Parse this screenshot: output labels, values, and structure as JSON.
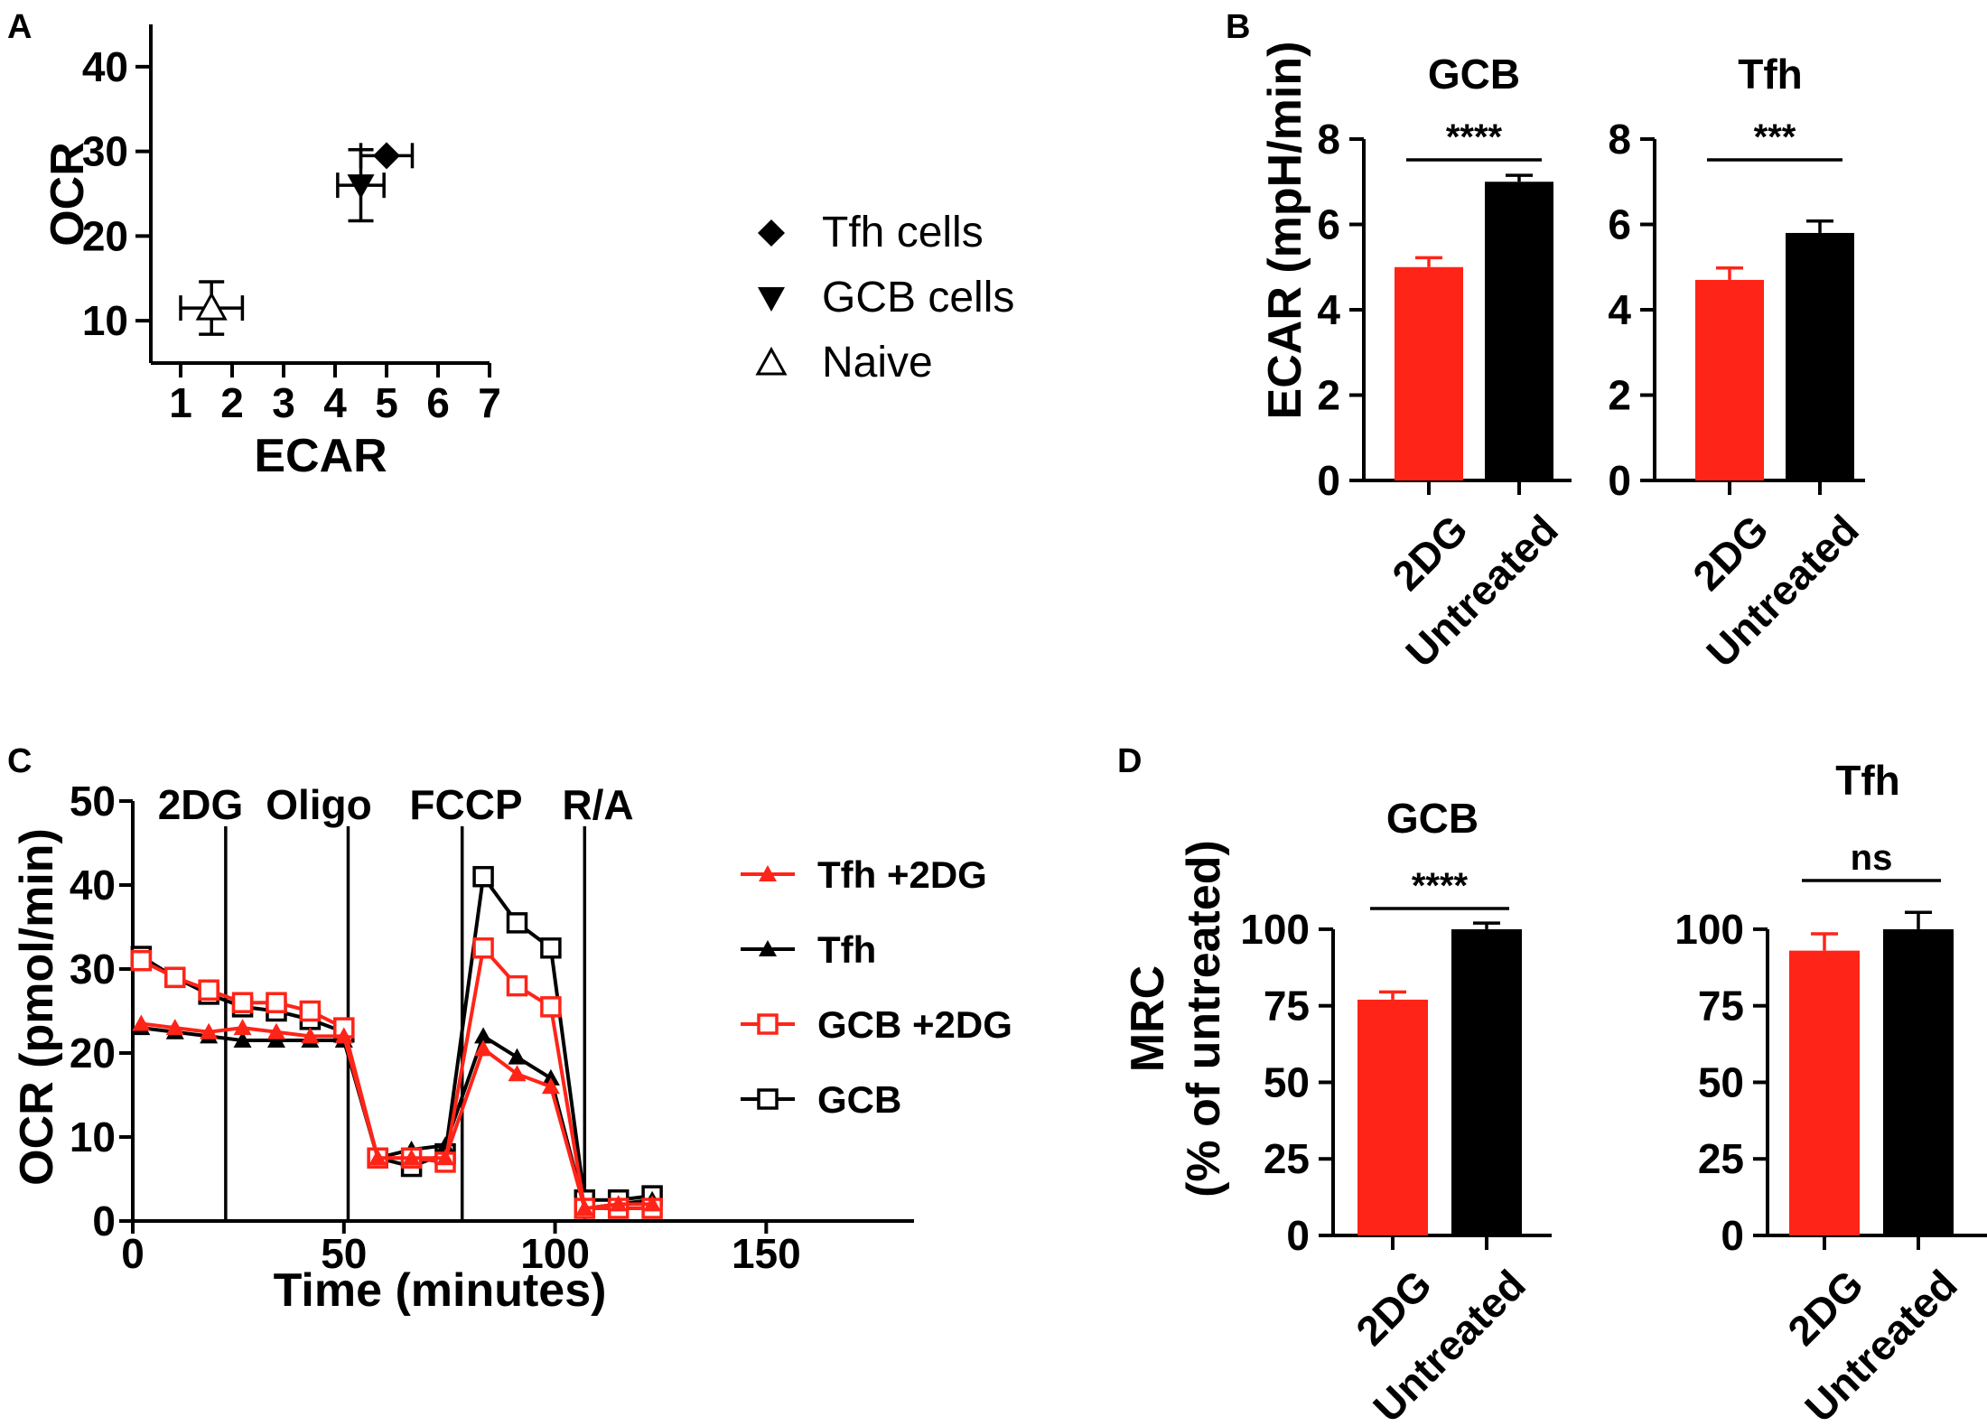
{
  "colors": {
    "red": "#ff2418",
    "black": "#000000"
  },
  "chart_data": [
    {
      "panel": "A",
      "type": "scatter",
      "xlabel": "ECAR",
      "ylabel": "OCR",
      "xlim": [
        1,
        7
      ],
      "ylim": [
        5,
        45
      ],
      "xticks": [
        1,
        2,
        3,
        4,
        5,
        6,
        7
      ],
      "yticks": [
        10,
        20,
        30,
        40
      ],
      "legend_position": "right",
      "series": [
        {
          "name": "Tfh cells",
          "marker": "diamond",
          "x": 5.0,
          "y": 29.5,
          "xerr": 0.5,
          "yerr": 0
        },
        {
          "name": "GCB cells",
          "marker": "triangle-down",
          "x": 4.5,
          "y": 26.0,
          "xerr": 0.45,
          "yerr": 4.2
        },
        {
          "name": "Naive",
          "marker": "triangle-up-open",
          "x": 1.6,
          "y": 11.5,
          "xerr": 0.6,
          "yerr": 3.1
        }
      ]
    },
    {
      "panel": "B",
      "type": "bar",
      "ylabel": "ECAR (mpH/min)",
      "ylim": [
        0,
        8
      ],
      "yticks": [
        0,
        2,
        4,
        6,
        8
      ],
      "subplots": [
        {
          "title": "GCB",
          "categories": [
            "2DG",
            "Untreated"
          ],
          "values": [
            5.0,
            7.0
          ],
          "errors": [
            0.22,
            0.15
          ],
          "significance": "****"
        },
        {
          "title": "Tfh",
          "categories": [
            "2DG",
            "Untreated"
          ],
          "values": [
            4.7,
            5.8
          ],
          "errors": [
            0.28,
            0.28
          ],
          "significance": "***"
        }
      ]
    },
    {
      "panel": "C",
      "type": "line",
      "xlabel": "Time (minutes)",
      "ylabel": "OCR (pmol/min)",
      "xlim": [
        0,
        185
      ],
      "ylim": [
        0,
        50
      ],
      "xticks": [
        0,
        50,
        100,
        150
      ],
      "yticks": [
        0,
        10,
        20,
        30,
        40,
        50
      ],
      "injections": [
        {
          "label": "2DG",
          "x": 22
        },
        {
          "label": "Oligo",
          "x": 51
        },
        {
          "label": "FCCP",
          "x": 78
        },
        {
          "label": "R/A",
          "x": 107
        }
      ],
      "x": [
        2,
        10,
        18,
        26,
        34,
        42,
        50,
        58,
        66,
        74,
        83,
        91,
        99,
        107,
        115,
        123
      ],
      "series": [
        {
          "name": "Tfh +2DG",
          "color": "#ff2418",
          "marker": "triangle",
          "values": [
            23.5,
            23,
            22.5,
            23,
            22.5,
            22,
            22,
            7.5,
            7.5,
            7.5,
            20.5,
            17.5,
            16,
            1.5,
            2,
            2
          ]
        },
        {
          "name": "Tfh",
          "color": "#000000",
          "marker": "triangle",
          "values": [
            23,
            22.5,
            22,
            21.5,
            21.5,
            21.5,
            21.5,
            7.5,
            8.5,
            9,
            22,
            19.5,
            17,
            1.5,
            2,
            2.5
          ]
        },
        {
          "name": "GCB +2DG",
          "color": "#ff2418",
          "marker": "square-open",
          "values": [
            31,
            29,
            27.5,
            26,
            26,
            25,
            23,
            7.5,
            7.5,
            7,
            32.5,
            28,
            25.5,
            1.5,
            1.5,
            1.5
          ]
        },
        {
          "name": "GCB",
          "color": "#000000",
          "marker": "square-open",
          "values": [
            31.5,
            29,
            27,
            25.5,
            25,
            24,
            22.5,
            7.5,
            6.5,
            8,
            41,
            35.5,
            32.5,
            2.5,
            2.5,
            3
          ]
        }
      ]
    },
    {
      "panel": "D",
      "type": "bar",
      "ylabel": "MRC",
      "ylabel2": "(% of untreated)",
      "ylim": [
        0,
        110
      ],
      "yticks": [
        0,
        25,
        50,
        75,
        100
      ],
      "subplots": [
        {
          "title": "GCB",
          "categories": [
            "2DG",
            "Untreated"
          ],
          "values": [
            77,
            100
          ],
          "errors": [
            2.5,
            2
          ],
          "significance": "****"
        },
        {
          "title": "Tfh",
          "categories": [
            "2DG",
            "Untreated"
          ],
          "values": [
            93,
            100
          ],
          "errors": [
            5.5,
            5.5
          ],
          "significance": "ns"
        }
      ]
    }
  ]
}
